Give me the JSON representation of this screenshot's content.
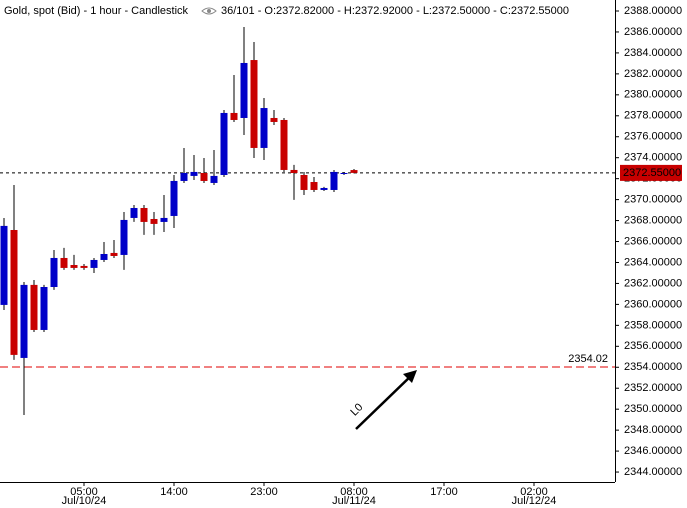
{
  "chart_data": {
    "type": "candlestick",
    "title": "Gold, spot (Bid) - 1 hour - Candlestick",
    "info": "36/101 - O:2372.82000 - H:2372.92000 - L:2372.50000 - C:2372.55000",
    "up_color": "#0000c8",
    "down_color": "#c80000",
    "open": [
      2359.95,
      2367.1,
      2354.89,
      2361.86,
      2357.56,
      2361.66,
      2364.43,
      2363.76,
      2363.67,
      2363.48,
      2364.24,
      2364.91,
      2364.72,
      2368.25,
      2369.2,
      2368.15,
      2367.87,
      2368.44,
      2371.78,
      2372.26,
      2372.54,
      2371.59,
      2372.35,
      2378.27,
      2377.79,
      2383.32,
      2374.93,
      2377.79,
      2377.6,
      2372.83,
      2372.35,
      2371.68,
      2370.92,
      2370.92,
      2372.45,
      2372.82
    ],
    "high": [
      2368.25,
      2371.4,
      2362.14,
      2362.33,
      2361.86,
      2365.19,
      2365.39,
      2364.72,
      2363.86,
      2364.43,
      2365.96,
      2366.15,
      2368.82,
      2369.49,
      2369.49,
      2368.82,
      2370.44,
      2372.35,
      2374.93,
      2374.26,
      2373.97,
      2374.74,
      2378.55,
      2381.89,
      2386.47,
      2385.04,
      2379.7,
      2378.55,
      2377.79,
      2373.31,
      2372.64,
      2372.16,
      2371.21,
      2372.83,
      2372.64,
      2372.92
    ],
    "low": [
      2359.47,
      2354.7,
      2349.45,
      2357.37,
      2357.37,
      2361.38,
      2363.29,
      2363.29,
      2363.29,
      2363.0,
      2364.05,
      2364.43,
      2363.29,
      2367.87,
      2366.63,
      2366.63,
      2366.91,
      2367.29,
      2371.59,
      2371.87,
      2371.59,
      2371.4,
      2372.16,
      2377.41,
      2376.17,
      2373.97,
      2373.78,
      2377.12,
      2372.64,
      2369.97,
      2370.44,
      2370.73,
      2370.82,
      2370.73,
      2372.35,
      2372.5
    ],
    "close": [
      2367.49,
      2355.18,
      2361.86,
      2357.56,
      2361.66,
      2364.43,
      2363.48,
      2363.48,
      2363.48,
      2364.24,
      2364.81,
      2364.62,
      2368.06,
      2369.2,
      2367.87,
      2367.68,
      2368.25,
      2371.78,
      2372.54,
      2372.64,
      2371.78,
      2372.26,
      2378.27,
      2377.6,
      2383.04,
      2374.93,
      2378.74,
      2377.41,
      2372.83,
      2372.54,
      2370.92,
      2370.92,
      2371.11,
      2372.64,
      2372.54,
      2372.55
    ],
    "xlim": [
      -0.4,
      61.1
    ],
    "xticks": [
      {
        "value": 8,
        "label": "05:00"
      },
      {
        "value": 17,
        "label": "14:00"
      },
      {
        "value": 26,
        "label": "23:00"
      },
      {
        "value": 35,
        "label": "08:00"
      },
      {
        "value": 44,
        "label": "17:00"
      },
      {
        "value": 53,
        "label": "02:00"
      }
    ],
    "date_ticks": [
      {
        "value": 8,
        "label": "Jul/10/24"
      },
      {
        "value": 35,
        "label": "Jul/11/24"
      },
      {
        "value": 53,
        "label": "Jul/12/24"
      }
    ],
    "ylim": [
      2343.05,
      2389.05
    ],
    "yticks": [
      {
        "value": 2344,
        "label": "2344.00000"
      },
      {
        "value": 2346,
        "label": "2346.00000"
      },
      {
        "value": 2348,
        "label": "2348.00000"
      },
      {
        "value": 2350,
        "label": "2350.00000"
      },
      {
        "value": 2352,
        "label": "2352.00000"
      },
      {
        "value": 2354,
        "label": "2354.00000"
      },
      {
        "value": 2356,
        "label": "2356.00000"
      },
      {
        "value": 2358,
        "label": "2358.00000"
      },
      {
        "value": 2360,
        "label": "2360.00000"
      },
      {
        "value": 2362,
        "label": "2362.00000"
      },
      {
        "value": 2364,
        "label": "2364.00000"
      },
      {
        "value": 2366,
        "label": "2366.00000"
      },
      {
        "value": 2368,
        "label": "2368.00000"
      },
      {
        "value": 2370,
        "label": "2370.00000"
      },
      {
        "value": 2372,
        "label": "2372.00000"
      },
      {
        "value": 2374,
        "label": "2374.00000"
      },
      {
        "value": 2376,
        "label": "2376.00000"
      },
      {
        "value": 2378,
        "label": "2378.00000"
      },
      {
        "value": 2380,
        "label": "2380.00000"
      },
      {
        "value": 2382,
        "label": "2382.00000"
      },
      {
        "value": 2384,
        "label": "2384.00000"
      },
      {
        "value": 2386,
        "label": "2386.00000"
      },
      {
        "value": 2388,
        "label": "2388.00000"
      }
    ],
    "last_price": {
      "value": 2372.55,
      "label": "2372.55000"
    },
    "level_line": {
      "value": 2354.02,
      "color": "#f08080"
    },
    "annotation": "L0"
  }
}
